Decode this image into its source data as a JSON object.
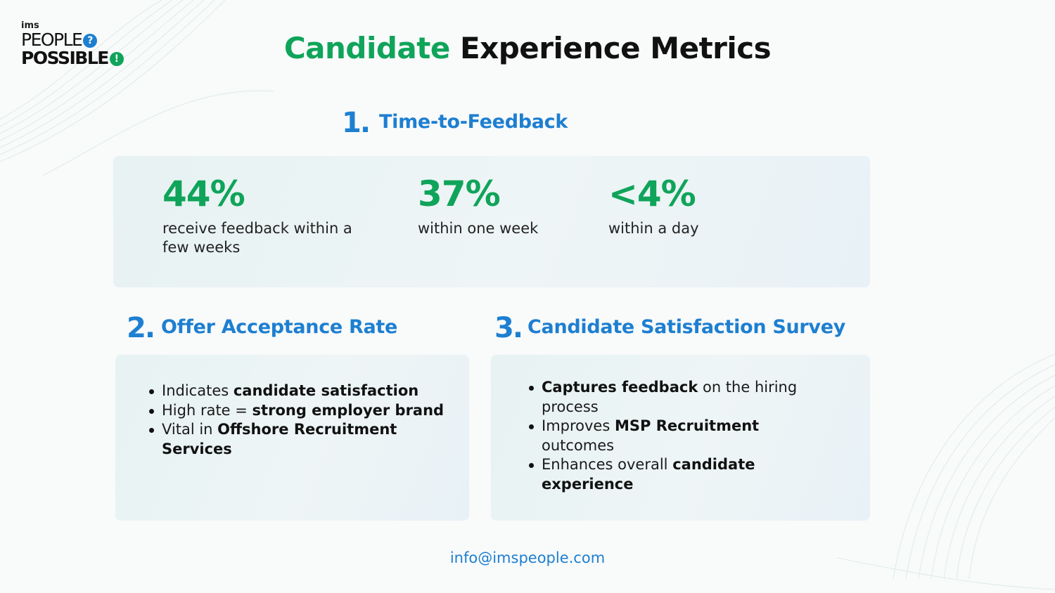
{
  "logo": {
    "small": "ims",
    "line1": "PEOPLE",
    "line1_mark": "?",
    "line2": "POSSIBLE",
    "line2_mark": "!"
  },
  "title": {
    "part1": "Candidate",
    "part2": "Experience Metrics"
  },
  "section1": {
    "number": "1.",
    "heading": "Time-to-Feedback",
    "stats": [
      {
        "value": "44%",
        "description": "receive feedback within a few weeks"
      },
      {
        "value": "37%",
        "description": "within one week"
      },
      {
        "value": "<4%",
        "description": "within a day"
      }
    ]
  },
  "section2": {
    "number": "2.",
    "heading": "Offer Acceptance Rate",
    "bullets": [
      {
        "text": "Indicates ",
        "bold": "candidate satisfaction",
        "after": ""
      },
      {
        "text": "High rate = ",
        "bold": "strong employer brand",
        "after": ""
      },
      {
        "text": "Vital in ",
        "bold": "Offshore Recruitment Services",
        "after": ""
      }
    ]
  },
  "section3": {
    "number": "3.",
    "heading": "Candidate Satisfaction Survey",
    "bullets": [
      {
        "text": "",
        "bold": "Captures feedback",
        "after": " on the hiring process"
      },
      {
        "text": "Improves ",
        "bold": "MSP Recruitment",
        "after": " outcomes"
      },
      {
        "text": "Enhances overall ",
        "bold": "candidate experience",
        "after": ""
      }
    ]
  },
  "footer": {
    "email": "info@imspeople.com"
  },
  "colors": {
    "green": "#0fa45a",
    "blue": "#1d7fd1",
    "panel": "#eaf3f4"
  }
}
